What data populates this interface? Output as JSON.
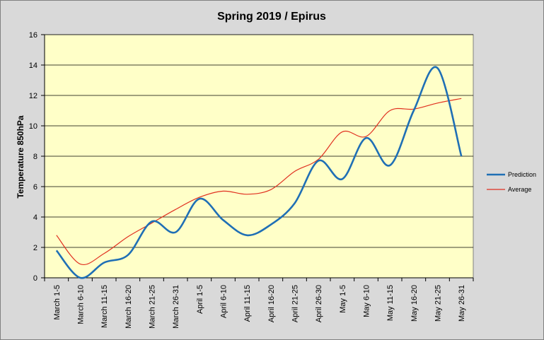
{
  "chart_data": {
    "type": "line",
    "title": "Spring 2019 / Epirus",
    "xlabel": "",
    "ylabel": "Temperature 850hPa",
    "ylim": [
      0,
      16
    ],
    "ytick_step": 2,
    "grid": true,
    "legend_position": "right",
    "categories": [
      "March 1-5",
      "March 6-10",
      "March 11-15",
      "March 16-20",
      "March 21-25",
      "March 26-31",
      "April 1-5",
      "April 6-10",
      "April 11-15",
      "April 16-20",
      "April 21-25",
      "April 26-30",
      "May 1-5",
      "May 6-10",
      "May 11-15",
      "May 16-20",
      "May 21-25",
      "May 26-31"
    ],
    "series": [
      {
        "name": "Prediction",
        "color": "#1f6fb5",
        "values": [
          1.8,
          0.0,
          1.0,
          1.5,
          3.7,
          3.0,
          5.2,
          3.8,
          2.8,
          3.5,
          4.9,
          7.7,
          6.5,
          9.2,
          7.4,
          11.0,
          13.8,
          8.0
        ]
      },
      {
        "name": "Average",
        "color": "#e03020",
        "values": [
          2.8,
          0.9,
          1.6,
          2.7,
          3.6,
          4.5,
          5.3,
          5.7,
          5.5,
          5.8,
          7.0,
          7.8,
          9.6,
          9.3,
          11.0,
          11.1,
          11.5,
          11.8
        ]
      }
    ],
    "colors": {
      "plot_background": "#ffffc8",
      "page_background": "#d9d9d9",
      "grid": "#000000"
    }
  }
}
